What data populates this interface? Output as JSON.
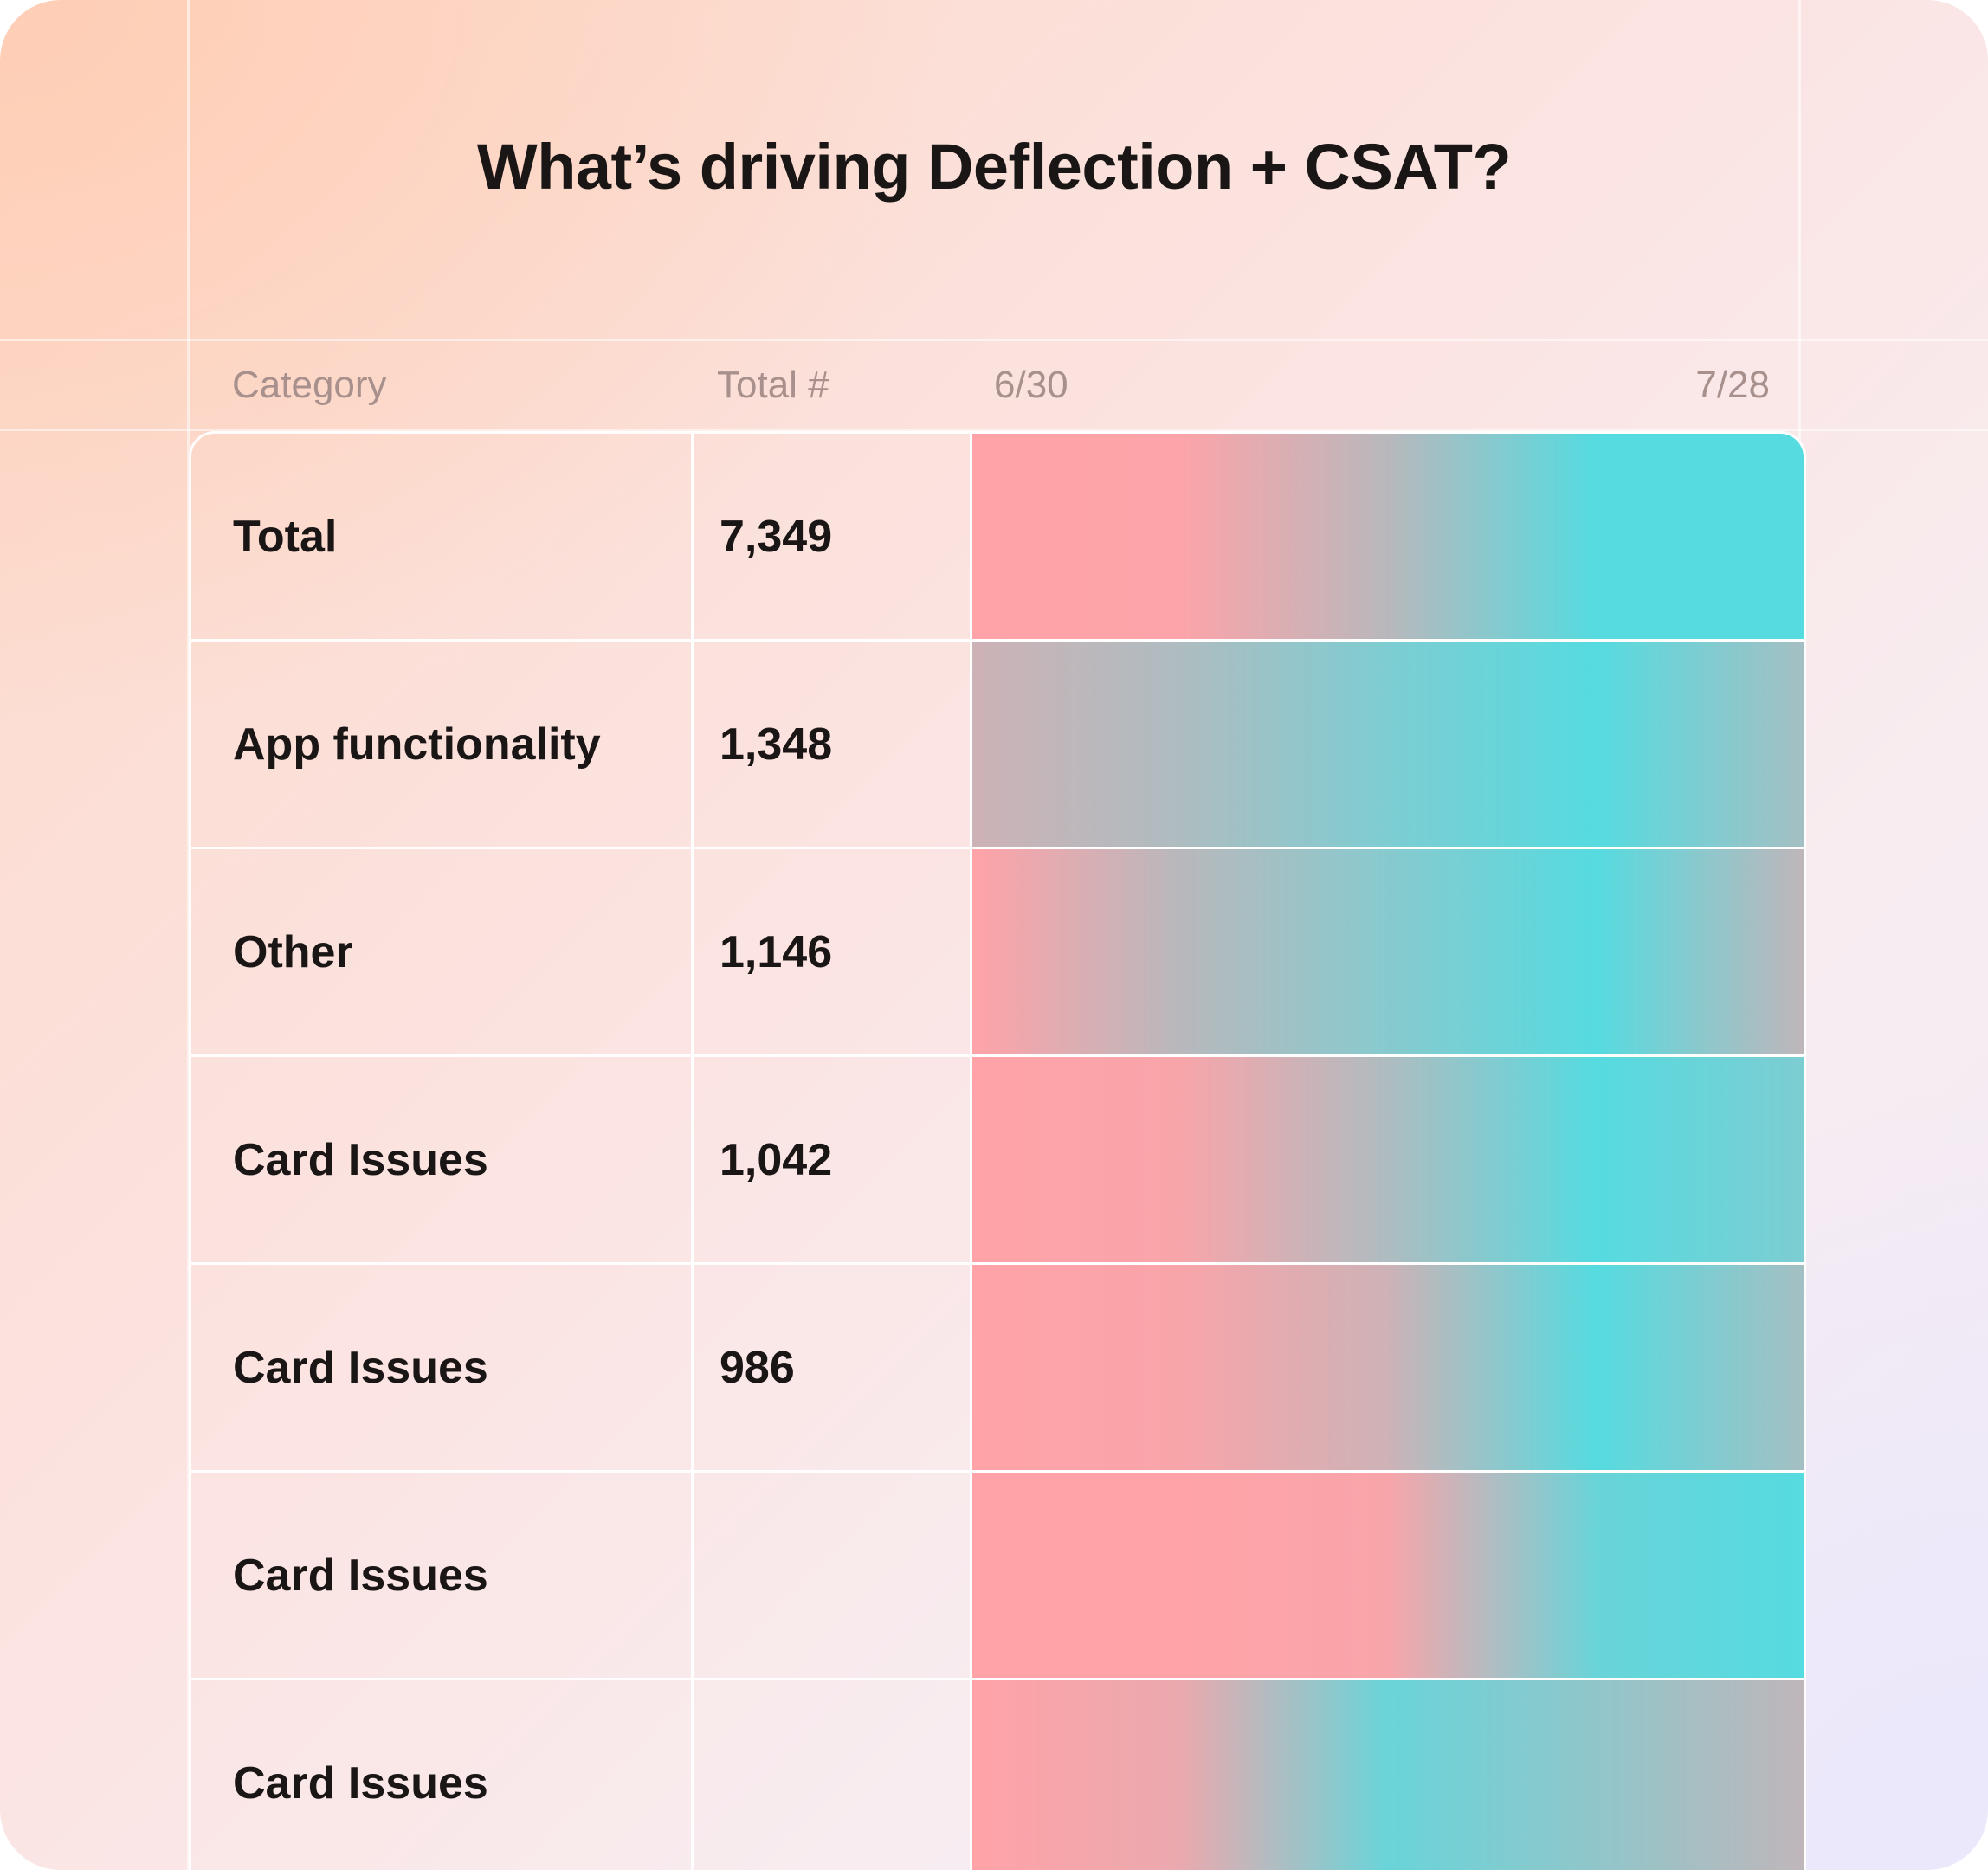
{
  "chart_data": {
    "type": "table",
    "title": "What’s driving Deflection + CSAT?",
    "columns": [
      "Category",
      "Total #",
      "6/30",
      "7/28"
    ],
    "date_range": {
      "start": "6/30",
      "end": "7/28"
    },
    "color_scale": {
      "low": "#ffa3a8",
      "mid": "#b8b8bc",
      "high": "#55dbe0"
    },
    "rows": [
      {
        "category": "Total",
        "total": "7,349",
        "trend": [
          0.0,
          0.02,
          0.5,
          1.0,
          1.0
        ]
      },
      {
        "category": "App functionality",
        "total": "1,348",
        "trend": [
          0.35,
          0.55,
          0.8,
          1.0,
          0.6
        ]
      },
      {
        "category": "Other",
        "total": "1,146",
        "trend": [
          0.0,
          0.5,
          0.75,
          1.0,
          0.45
        ]
      },
      {
        "category": "Card Issues",
        "total": "1,042",
        "trend": [
          0.0,
          0.05,
          0.55,
          1.0,
          0.8
        ]
      },
      {
        "category": "Card Issues",
        "total": "986",
        "trend": [
          0.0,
          0.05,
          0.35,
          1.0,
          0.6
        ]
      },
      {
        "category": "Card Issues",
        "total": "",
        "trend": [
          0.0,
          0.0,
          0.05,
          0.9,
          1.0
        ]
      },
      {
        "category": "Card Issues",
        "total": "",
        "trend": [
          0.0,
          0.15,
          0.9,
          0.7,
          0.45
        ]
      }
    ]
  }
}
